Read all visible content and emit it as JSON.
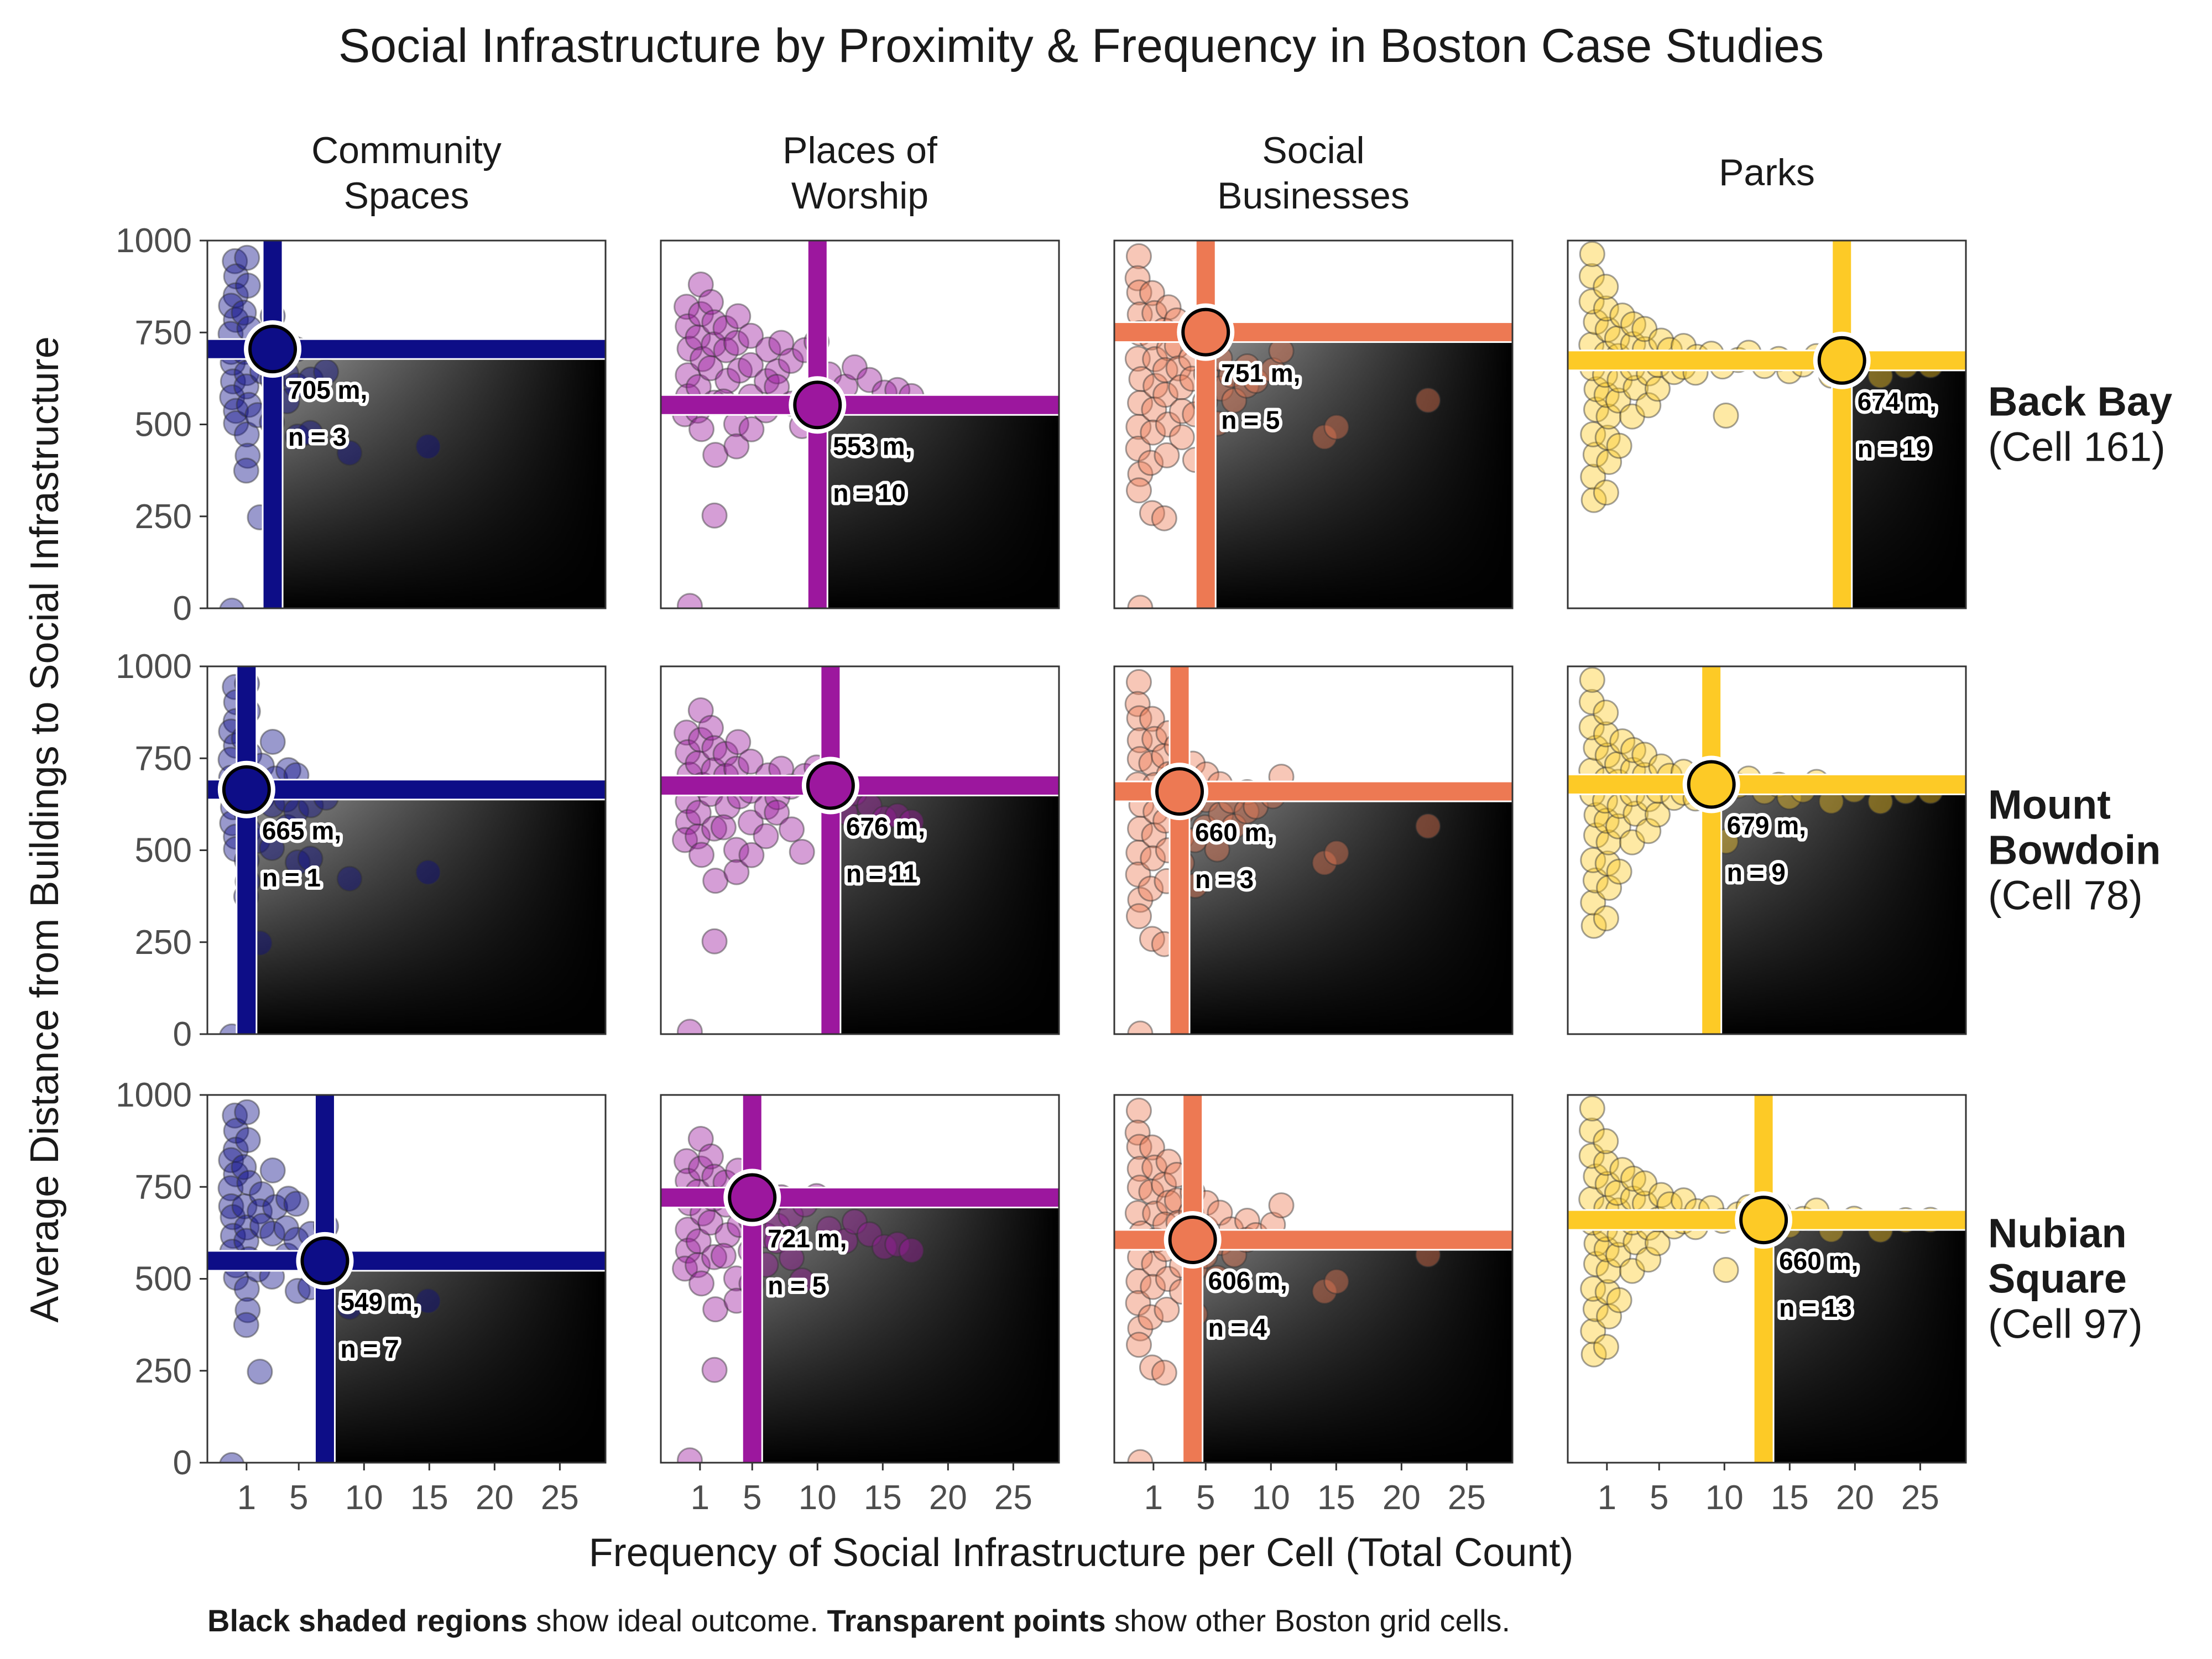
{
  "chart_data": {
    "type": "scatter",
    "title": "Social Infrastructure by Proximity & Frequency in Boston Case Studies",
    "xlabel": "Frequency of Social Infrastructure per Cell (Total Count)",
    "ylabel": "Average Distance from Buildings to Social Infrastructure",
    "xlim": [
      -2,
      28.5
    ],
    "ylim": [
      0,
      1000
    ],
    "xticks": [
      1,
      5,
      10,
      15,
      20,
      25
    ],
    "yticks": [
      0,
      250,
      500,
      750,
      1000
    ],
    "caption_bold_1": "Black shaded regions",
    "caption_text_1": " show ideal outcome. ",
    "caption_bold_2": "Transparent points",
    "caption_text_2": " show other Boston grid cells.",
    "columns": [
      {
        "label_lines": [
          "Community",
          "Spaces"
        ],
        "color": "#0d0d87"
      },
      {
        "label_lines": [
          "Places of",
          "Worship"
        ],
        "color": "#9c179e"
      },
      {
        "label_lines": [
          "Social",
          "Businesses"
        ],
        "color": "#ed7953"
      },
      {
        "label_lines": [
          "Parks"
        ],
        "color": "#fdca26"
      }
    ],
    "rows": [
      {
        "bold_lines": [
          "Back Bay"
        ],
        "sub": "(Cell 161)"
      },
      {
        "bold_lines": [
          "Mount",
          "Bowdoin"
        ],
        "sub": "(Cell 78)"
      },
      {
        "bold_lines": [
          "Nubian",
          "Square"
        ],
        "sub": "(Cell 97)"
      }
    ],
    "highlights": [
      [
        {
          "x": 3,
          "y": 705,
          "dist": "705 m,",
          "n": "n = 3"
        },
        {
          "x": 10,
          "y": 553,
          "dist": "553 m,",
          "n": "n = 10"
        },
        {
          "x": 5,
          "y": 751,
          "dist": "751 m,",
          "n": "n = 5"
        },
        {
          "x": 19,
          "y": 674,
          "dist": "674 m,",
          "n": "n = 19"
        }
      ],
      [
        {
          "x": 1,
          "y": 665,
          "dist": "665 m,",
          "n": "n = 1"
        },
        {
          "x": 11,
          "y": 676,
          "dist": "676 m,",
          "n": "n = 11"
        },
        {
          "x": 3,
          "y": 660,
          "dist": "660 m,",
          "n": "n = 3"
        },
        {
          "x": 9,
          "y": 679,
          "dist": "679 m,",
          "n": "n = 9"
        }
      ],
      [
        {
          "x": 7,
          "y": 549,
          "dist": "549 m,",
          "n": "n = 7"
        },
        {
          "x": 5,
          "y": 721,
          "dist": "721 m,",
          "n": "n = 5"
        },
        {
          "x": 4,
          "y": 606,
          "dist": "606 m,",
          "n": "n = 4"
        },
        {
          "x": 13,
          "y": 660,
          "dist": "660 m,",
          "n": "n = 13"
        }
      ]
    ],
    "background_points": [
      [
        [
          0,
          0
        ],
        [
          0,
          950
        ],
        [
          0,
          900
        ],
        [
          0,
          850
        ],
        [
          0,
          820
        ],
        [
          0,
          780
        ],
        [
          0,
          740
        ],
        [
          0,
          700
        ],
        [
          0,
          660
        ],
        [
          0,
          620
        ],
        [
          0,
          580
        ],
        [
          0,
          540
        ],
        [
          0,
          500
        ],
        [
          1,
          960
        ],
        [
          1,
          880
        ],
        [
          1,
          810
        ],
        [
          1,
          760
        ],
        [
          1,
          690
        ],
        [
          1,
          640
        ],
        [
          1,
          600
        ],
        [
          1,
          560
        ],
        [
          1,
          480
        ],
        [
          1,
          420
        ],
        [
          1,
          380
        ],
        [
          2,
          730
        ],
        [
          2,
          680
        ],
        [
          2,
          640
        ],
        [
          2,
          520
        ],
        [
          2,
          240
        ],
        [
          3,
          800
        ],
        [
          3,
          700
        ],
        [
          3,
          620
        ],
        [
          3,
          500
        ],
        [
          4,
          720
        ],
        [
          4,
          640
        ],
        [
          4,
          560
        ],
        [
          5,
          700
        ],
        [
          5,
          600
        ],
        [
          5,
          460
        ],
        [
          6,
          620
        ],
        [
          6,
          480
        ],
        [
          7,
          640
        ],
        [
          9,
          430
        ],
        [
          15,
          440
        ]
      ],
      [
        [
          0,
          0
        ],
        [
          0,
          820
        ],
        [
          0,
          760
        ],
        [
          0,
          700
        ],
        [
          0,
          640
        ],
        [
          0,
          580
        ],
        [
          0,
          520
        ],
        [
          1,
          880
        ],
        [
          1,
          800
        ],
        [
          1,
          740
        ],
        [
          1,
          680
        ],
        [
          1,
          600
        ],
        [
          1,
          540
        ],
        [
          1,
          480
        ],
        [
          2,
          840
        ],
        [
          2,
          780
        ],
        [
          2,
          720
        ],
        [
          2,
          660
        ],
        [
          2,
          560
        ],
        [
          2,
          420
        ],
        [
          2,
          260
        ],
        [
          3,
          760
        ],
        [
          3,
          700
        ],
        [
          3,
          620
        ],
        [
          3,
          560
        ],
        [
          4,
          800
        ],
        [
          4,
          720
        ],
        [
          4,
          640
        ],
        [
          4,
          500
        ],
        [
          4,
          440
        ],
        [
          5,
          740
        ],
        [
          5,
          660
        ],
        [
          5,
          580
        ],
        [
          5,
          480
        ],
        [
          6,
          700
        ],
        [
          6,
          620
        ],
        [
          6,
          540
        ],
        [
          7,
          720
        ],
        [
          7,
          640
        ],
        [
          7,
          600
        ],
        [
          8,
          680
        ],
        [
          8,
          560
        ],
        [
          9,
          700
        ],
        [
          9,
          500
        ],
        [
          10,
          720
        ],
        [
          11,
          640
        ],
        [
          12,
          600
        ],
        [
          13,
          660
        ],
        [
          14,
          620
        ],
        [
          15,
          580
        ],
        [
          16,
          600
        ],
        [
          17,
          580
        ]
      ],
      [
        [
          0,
          0
        ],
        [
          0,
          960
        ],
        [
          0,
          900
        ],
        [
          0,
          860
        ],
        [
          0,
          800
        ],
        [
          0,
          740
        ],
        [
          0,
          680
        ],
        [
          0,
          620
        ],
        [
          0,
          560
        ],
        [
          0,
          500
        ],
        [
          0,
          440
        ],
        [
          0,
          360
        ],
        [
          0,
          320
        ],
        [
          1,
          860
        ],
        [
          1,
          800
        ],
        [
          1,
          740
        ],
        [
          1,
          680
        ],
        [
          1,
          600
        ],
        [
          1,
          540
        ],
        [
          1,
          480
        ],
        [
          1,
          400
        ],
        [
          1,
          260
        ],
        [
          2,
          820
        ],
        [
          2,
          760
        ],
        [
          2,
          700
        ],
        [
          2,
          640
        ],
        [
          2,
          580
        ],
        [
          2,
          500
        ],
        [
          2,
          420
        ],
        [
          2,
          240
        ],
        [
          3,
          780
        ],
        [
          3,
          720
        ],
        [
          3,
          660
        ],
        [
          3,
          600
        ],
        [
          3,
          540
        ],
        [
          3,
          460
        ],
        [
          4,
          740
        ],
        [
          4,
          680
        ],
        [
          4,
          620
        ],
        [
          4,
          520
        ],
        [
          4,
          400
        ],
        [
          5,
          700
        ],
        [
          5,
          640
        ],
        [
          5,
          560
        ],
        [
          6,
          680
        ],
        [
          6,
          600
        ],
        [
          6,
          500
        ],
        [
          7,
          640
        ],
        [
          7,
          560
        ],
        [
          8,
          660
        ],
        [
          8,
          600
        ],
        [
          9,
          620
        ],
        [
          10,
          640
        ],
        [
          11,
          700
        ],
        [
          14,
          460
        ],
        [
          15,
          490
        ],
        [
          22,
          560
        ]
      ],
      [
        [
          0,
          300
        ],
        [
          0,
          360
        ],
        [
          0,
          420
        ],
        [
          0,
          480
        ],
        [
          0,
          540
        ],
        [
          0,
          600
        ],
        [
          0,
          660
        ],
        [
          0,
          720
        ],
        [
          0,
          780
        ],
        [
          0,
          840
        ],
        [
          0,
          900
        ],
        [
          0,
          960
        ],
        [
          1,
          320
        ],
        [
          1,
          400
        ],
        [
          1,
          460
        ],
        [
          1,
          520
        ],
        [
          1,
          580
        ],
        [
          1,
          640
        ],
        [
          1,
          700
        ],
        [
          1,
          760
        ],
        [
          1,
          820
        ],
        [
          1,
          880
        ],
        [
          2,
          440
        ],
        [
          2,
          560
        ],
        [
          2,
          620
        ],
        [
          2,
          680
        ],
        [
          2,
          740
        ],
        [
          2,
          800
        ],
        [
          3,
          520
        ],
        [
          3,
          600
        ],
        [
          3,
          660
        ],
        [
          3,
          720
        ],
        [
          3,
          780
        ],
        [
          4,
          560
        ],
        [
          4,
          640
        ],
        [
          4,
          700
        ],
        [
          4,
          760
        ],
        [
          5,
          600
        ],
        [
          5,
          660
        ],
        [
          5,
          720
        ],
        [
          6,
          640
        ],
        [
          6,
          700
        ],
        [
          7,
          660
        ],
        [
          7,
          720
        ],
        [
          8,
          680
        ],
        [
          8,
          640
        ],
        [
          9,
          700
        ],
        [
          10,
          520
        ],
        [
          10,
          660
        ],
        [
          11,
          680
        ],
        [
          12,
          700
        ],
        [
          13,
          660
        ],
        [
          14,
          680
        ],
        [
          15,
          640
        ],
        [
          16,
          660
        ],
        [
          17,
          680
        ],
        [
          18,
          640
        ],
        [
          20,
          660
        ],
        [
          22,
          640
        ],
        [
          24,
          660
        ],
        [
          26,
          660
        ]
      ]
    ]
  }
}
